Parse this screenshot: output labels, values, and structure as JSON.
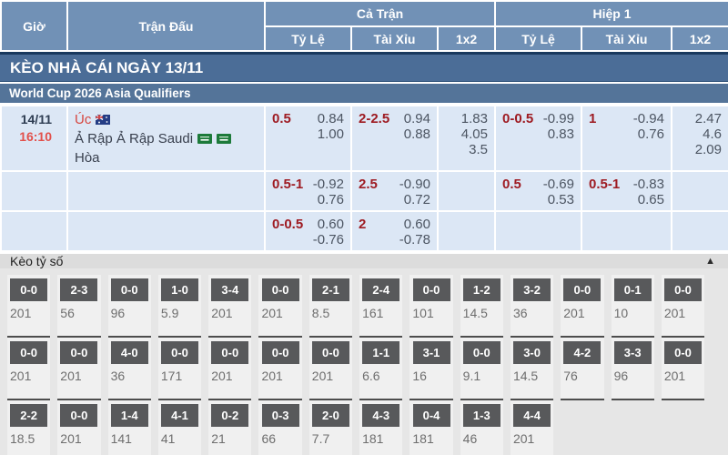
{
  "colors": {
    "header_blue": "#7191b6",
    "banner_blue": "#4b6d97",
    "league_blue": "#547499",
    "row_bg": "#dce7f5",
    "handicap_red": "#9e1b22",
    "time_red": "#e2504b",
    "score_box_gray": "#58595b",
    "section_bg": "#e6e6e6",
    "bar_bg": "#dcdcdc"
  },
  "header": {
    "col_time": "Giờ",
    "col_match": "Trận Đấu",
    "group_full": "Cả Trận",
    "group_half": "Hiệp 1",
    "sub_handicap": "Tỷ Lệ",
    "sub_ou": "Tài Xỉu",
    "sub_1x2": "1x2"
  },
  "banner": {
    "title": "KÈO NHÀ CÁI NGÀY 13/11"
  },
  "league": {
    "name": "World Cup 2026 Asia Qualifiers"
  },
  "match": {
    "date": "14/11",
    "time": "16:10",
    "home": "Úc",
    "away": "Ả Rập Ả Rập Saudi",
    "draw_label": "Hòa",
    "home_flag": "australia-flag",
    "away_flag": "saudi-arabia-flag",
    "rows": [
      {
        "ft_hdp": {
          "line": "0.5",
          "odds": [
            "0.84",
            "1.00"
          ]
        },
        "ft_ou": {
          "line": "2-2.5",
          "odds": [
            "0.94",
            "0.88"
          ]
        },
        "ft_1x2": [
          "1.83",
          "4.05",
          "3.5"
        ],
        "h1_hdp": {
          "line": "0-0.5",
          "odds": [
            "-0.99",
            "0.83"
          ]
        },
        "h1_ou": {
          "line": "1",
          "odds": [
            "-0.94",
            "0.76"
          ]
        },
        "h1_1x2": [
          "2.47",
          "4.6",
          "2.09"
        ]
      },
      {
        "ft_hdp": {
          "line": "0.5-1",
          "odds": [
            "-0.92",
            "0.76"
          ]
        },
        "ft_ou": {
          "line": "2.5",
          "odds": [
            "-0.90",
            "0.72"
          ]
        },
        "ft_1x2": [],
        "h1_hdp": {
          "line": "0.5",
          "odds": [
            "-0.69",
            "0.53"
          ]
        },
        "h1_ou": {
          "line": "0.5-1",
          "odds": [
            "-0.83",
            "0.65"
          ]
        },
        "h1_1x2": []
      },
      {
        "ft_hdp": {
          "line": "0-0.5",
          "odds": [
            "0.60",
            "-0.76"
          ]
        },
        "ft_ou": {
          "line": "2",
          "odds": [
            "0.60",
            "-0.78"
          ]
        },
        "ft_1x2": [],
        "h1_hdp": {
          "line": "",
          "odds": []
        },
        "h1_ou": {
          "line": "",
          "odds": []
        },
        "h1_1x2": []
      }
    ]
  },
  "score_section": {
    "title": "Kèo tỷ số",
    "collapse_icon": "▲",
    "rows": [
      [
        {
          "score": "0-0",
          "odd": "201"
        },
        {
          "score": "2-3",
          "odd": "56"
        },
        {
          "score": "0-0",
          "odd": "96"
        },
        {
          "score": "1-0",
          "odd": "5.9"
        },
        {
          "score": "3-4",
          "odd": "201"
        },
        {
          "score": "0-0",
          "odd": "201"
        },
        {
          "score": "2-1",
          "odd": "8.5"
        },
        {
          "score": "2-4",
          "odd": "161"
        },
        {
          "score": "0-0",
          "odd": "101"
        },
        {
          "score": "1-2",
          "odd": "14.5"
        },
        {
          "score": "3-2",
          "odd": "36"
        },
        {
          "score": "0-0",
          "odd": "201"
        },
        {
          "score": "0-1",
          "odd": "10"
        },
        {
          "score": "0-0",
          "odd": "201"
        }
      ],
      [
        {
          "score": "0-0",
          "odd": "201"
        },
        {
          "score": "0-0",
          "odd": "201"
        },
        {
          "score": "4-0",
          "odd": "36"
        },
        {
          "score": "0-0",
          "odd": "171"
        },
        {
          "score": "0-0",
          "odd": "201"
        },
        {
          "score": "0-0",
          "odd": "201"
        },
        {
          "score": "0-0",
          "odd": "201"
        },
        {
          "score": "1-1",
          "odd": "6.6"
        },
        {
          "score": "3-1",
          "odd": "16"
        },
        {
          "score": "0-0",
          "odd": "9.1"
        },
        {
          "score": "3-0",
          "odd": "14.5"
        },
        {
          "score": "4-2",
          "odd": "76"
        },
        {
          "score": "3-3",
          "odd": "96"
        },
        {
          "score": "0-0",
          "odd": "201"
        }
      ],
      [
        {
          "score": "2-2",
          "odd": "18.5"
        },
        {
          "score": "0-0",
          "odd": "201"
        },
        {
          "score": "1-4",
          "odd": "141"
        },
        {
          "score": "4-1",
          "odd": "41"
        },
        {
          "score": "0-2",
          "odd": "21"
        },
        {
          "score": "0-3",
          "odd": "66"
        },
        {
          "score": "2-0",
          "odd": "7.7"
        },
        {
          "score": "4-3",
          "odd": "181"
        },
        {
          "score": "0-4",
          "odd": "181"
        },
        {
          "score": "1-3",
          "odd": "46"
        },
        {
          "score": "4-4",
          "odd": "201"
        }
      ]
    ]
  }
}
